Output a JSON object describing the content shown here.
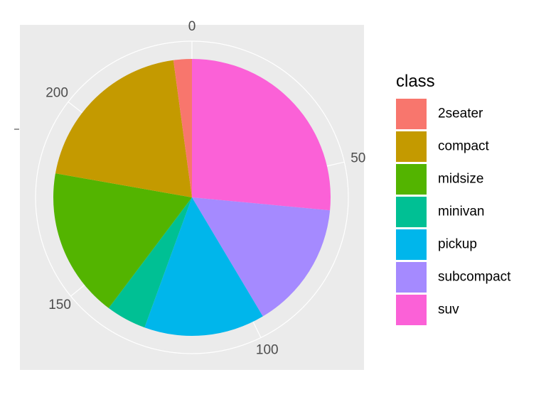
{
  "chart_data": {
    "type": "pie",
    "title": "",
    "xlabel": "",
    "ylabel": "",
    "count_axis": {
      "range": [
        0,
        234
      ],
      "ticks": [
        0,
        50,
        100,
        150,
        200
      ],
      "tick_labels": [
        "0",
        "50",
        "100",
        "150",
        "200"
      ]
    },
    "legend": {
      "title": "class",
      "placement": "right"
    },
    "grid": true,
    "slices": [
      {
        "label": "2seater",
        "value": 5,
        "color": "#F8766D"
      },
      {
        "label": "compact",
        "value": 47,
        "color": "#C49A00"
      },
      {
        "label": "midsize",
        "value": 41,
        "color": "#53B400"
      },
      {
        "label": "minivan",
        "value": 11,
        "color": "#00C094"
      },
      {
        "label": "pickup",
        "value": 33,
        "color": "#00B6EB"
      },
      {
        "label": "subcompact",
        "value": 35,
        "color": "#A58AFF"
      },
      {
        "label": "suv",
        "value": 62,
        "color": "#FB61D7"
      }
    ],
    "stack_order": [
      "suv",
      "subcompact",
      "pickup",
      "minivan",
      "midsize",
      "compact",
      "2seater"
    ],
    "panel_background": "#EBEBEB",
    "grid_color": "#FFFFFF"
  }
}
